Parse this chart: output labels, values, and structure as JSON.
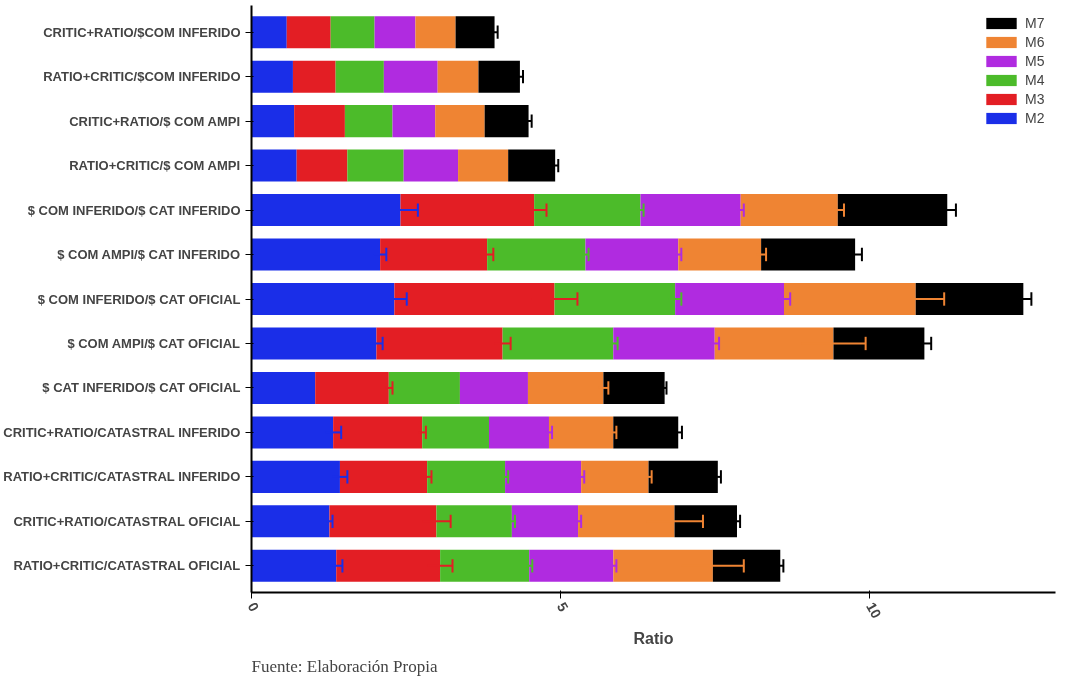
{
  "chart_data": {
    "type": "bar",
    "orientation": "horizontal",
    "stacked": true,
    "xlabel": "Ratio",
    "categories": [
      "CRITIC+RATIO/$COM INFERIDO",
      "RATIO+CRITIC/$COM INFERIDO",
      "CRITIC+RATIO/$ COM AMPI",
      "RATIO+CRITIC/$ COM AMPI",
      "$ COM INFERIDO/$ CAT INFERIDO",
      "$ COM AMPI/$ CAT INFERIDO",
      "$ COM INFERIDO/$ CAT OFICIAL",
      "$ COM AMPI/$ CAT OFICIAL",
      "$ CAT INFERIDO/$ CAT OFICIAL",
      "CRITIC+RATIO/CATASTRAL INFERIDO",
      "RATIO+CRITIC/CATASTRAL INFERIDO",
      "CRITIC+RATIO/CATASTRAL OFICIAL",
      "RATIO+CRITIC/CATASTRAL OFICIAL"
    ],
    "series": [
      {
        "name": "M2",
        "color": "#1a2ee8",
        "values": [
          0.57,
          0.67,
          0.69,
          0.73,
          2.41,
          2.08,
          2.31,
          2.02,
          1.03,
          1.32,
          1.43,
          1.26,
          1.37
        ],
        "errors": [
          null,
          null,
          null,
          null,
          0.28,
          0.1,
          0.2,
          0.1,
          null,
          0.13,
          0.12,
          0.05,
          0.1
        ]
      },
      {
        "name": "M3",
        "color": "#e31e24",
        "values": [
          0.71,
          0.69,
          0.82,
          0.82,
          2.16,
          1.73,
          2.59,
          2.04,
          1.19,
          1.44,
          1.41,
          1.73,
          1.68
        ],
        "errors": [
          null,
          null,
          null,
          null,
          0.2,
          0.1,
          0.37,
          0.13,
          0.06,
          0.06,
          0.07,
          0.23,
          0.2
        ]
      },
      {
        "name": "M4",
        "color": "#4cbb2a",
        "values": [
          0.71,
          0.78,
          0.77,
          0.91,
          1.72,
          1.59,
          1.95,
          1.79,
          1.15,
          1.08,
          1.26,
          1.22,
          1.44
        ],
        "errors": [
          null,
          null,
          null,
          null,
          0.05,
          0.05,
          0.1,
          0.07,
          null,
          null,
          0.05,
          0.05,
          0.05
        ]
      },
      {
        "name": "M5",
        "color": "#b02be0",
        "values": [
          0.66,
          0.87,
          0.69,
          0.88,
          1.62,
          1.5,
          1.76,
          1.64,
          1.1,
          0.97,
          1.23,
          1.07,
          1.36
        ],
        "errors": [
          null,
          null,
          null,
          null,
          0.05,
          0.05,
          0.1,
          0.07,
          null,
          0.05,
          0.05,
          0.05,
          0.05
        ]
      },
      {
        "name": "M6",
        "color": "#ef8433",
        "values": [
          0.65,
          0.66,
          0.8,
          0.81,
          1.57,
          1.34,
          2.13,
          1.92,
          1.22,
          1.04,
          1.09,
          1.56,
          1.61
        ],
        "errors": [
          null,
          null,
          null,
          null,
          0.1,
          0.08,
          0.46,
          0.52,
          0.08,
          0.05,
          0.05,
          0.46,
          0.5
        ]
      },
      {
        "name": "M7",
        "color": "#000000",
        "values": [
          0.63,
          0.67,
          0.71,
          0.76,
          1.77,
          1.52,
          1.74,
          1.47,
          0.99,
          1.05,
          1.12,
          1.01,
          1.09
        ],
        "errors": [
          0.05,
          0.05,
          0.05,
          0.05,
          0.14,
          0.11,
          0.13,
          0.11,
          0.03,
          0.06,
          0.05,
          0.05,
          0.05
        ]
      }
    ],
    "xlim": [
      0,
      13
    ],
    "xticks": [
      0,
      5,
      10
    ],
    "grid": false,
    "legend": "top right",
    "annotations": [
      "Fuente: Elaboración Propia"
    ]
  }
}
